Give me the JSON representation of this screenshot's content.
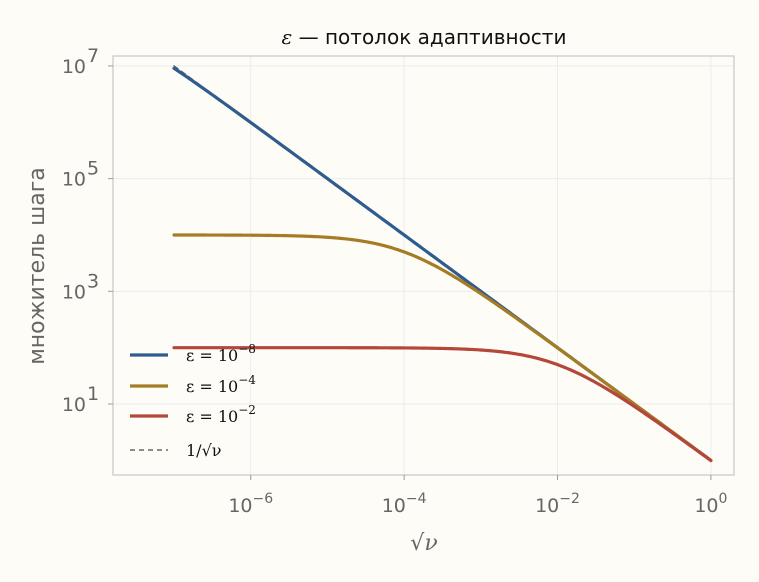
{
  "chart_data": {
    "type": "line",
    "title": "ε — потолок адаптивности",
    "title_symbol": "ε",
    "title_rest": " — потолок адаптивности",
    "xlabel": "√ν",
    "ylabel": "множитель шага",
    "xscale": "log",
    "yscale": "log",
    "xlim": [
      1.6e-08,
      2.0
    ],
    "ylim": [
      0.55,
      15000000
    ],
    "x_ticks": [
      {
        "value": 1e-06,
        "base": "10",
        "exp": "−6"
      },
      {
        "value": 0.0001,
        "base": "10",
        "exp": "−4"
      },
      {
        "value": 0.01,
        "base": "10",
        "exp": "−2"
      },
      {
        "value": 1,
        "base": "10",
        "exp": "0"
      }
    ],
    "y_ticks": [
      {
        "value": 10,
        "base": "10",
        "exp": "1"
      },
      {
        "value": 1000,
        "base": "10",
        "exp": "3"
      },
      {
        "value": 100000,
        "base": "10",
        "exp": "5"
      },
      {
        "value": 10000000,
        "base": "10",
        "exp": "7"
      }
    ],
    "grid": true,
    "legend_position": "lower-left",
    "x_range": [
      1e-07,
      1
    ],
    "series": [
      {
        "name": "ε = 10⁻⁸",
        "legend_lhs": "ε = 10",
        "legend_exp": "−8",
        "epsilon": 1e-08,
        "color": "#2f5b8e",
        "style": "solid"
      },
      {
        "name": "ε = 10⁻⁴",
        "legend_lhs": "ε = 10",
        "legend_exp": "−4",
        "epsilon": 0.0001,
        "color": "#a57c23",
        "style": "solid"
      },
      {
        "name": "ε = 10⁻²",
        "legend_lhs": "ε = 10",
        "legend_exp": "−2",
        "epsilon": 0.01,
        "color": "#b5463a",
        "style": "solid"
      },
      {
        "name": "1/√ν",
        "legend_lhs": "1/√ν",
        "legend_exp": "",
        "epsilon": 0,
        "color": "#666666",
        "style": "dashed"
      }
    ]
  }
}
